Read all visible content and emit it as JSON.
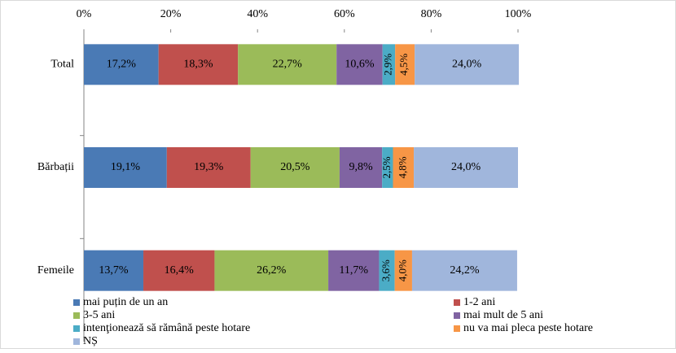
{
  "chart_data": {
    "type": "stacked_barh",
    "categories": [
      "Total",
      "Bărbații",
      "Femeile"
    ],
    "series": [
      {
        "name": "mai puțin de un an",
        "color": "#4a7ab5",
        "values": [
          17.2,
          19.1,
          13.7
        ],
        "value_labels": [
          "17,2%",
          "19,1%",
          "13,7%"
        ]
      },
      {
        "name": "1-2 ani",
        "color": "#c0504d",
        "values": [
          18.3,
          19.3,
          16.4
        ],
        "value_labels": [
          "18,3%",
          "19,3%",
          "16,4%"
        ]
      },
      {
        "name": "3-5 ani",
        "color": "#9bbb59",
        "values": [
          22.7,
          20.5,
          26.2
        ],
        "value_labels": [
          "22,7%",
          "20,5%",
          "26,2%"
        ]
      },
      {
        "name": "mai mult de 5 ani",
        "color": "#8064a2",
        "values": [
          10.6,
          9.8,
          11.7
        ],
        "value_labels": [
          "10,6%",
          "9,8%",
          "11,7%"
        ]
      },
      {
        "name": "intenţionează să rămână peste hotare",
        "color": "#4bacc6",
        "values": [
          2.9,
          2.5,
          3.6
        ],
        "value_labels": [
          "2,9%",
          "2,5%",
          "3,6%"
        ]
      },
      {
        "name": "nu va mai pleca peste hotare",
        "color": "#f79646",
        "values": [
          4.5,
          4.8,
          4.0
        ],
        "value_labels": [
          "4,5%",
          "4,8%",
          "4,0%"
        ]
      },
      {
        "name": "NȘ",
        "color": "#a0b6dc",
        "values": [
          24.0,
          24.0,
          24.2
        ],
        "value_labels": [
          "24,0%",
          "24,0%",
          "24,2%"
        ]
      }
    ],
    "xlim": [
      0,
      100
    ],
    "xticks": [
      {
        "value": 0,
        "label": "0%"
      },
      {
        "value": 20,
        "label": "20%"
      },
      {
        "value": 40,
        "label": "40%"
      },
      {
        "value": 60,
        "label": "60%"
      },
      {
        "value": 80,
        "label": "80%"
      },
      {
        "value": 100,
        "label": "100%"
      }
    ],
    "grid": false
  }
}
